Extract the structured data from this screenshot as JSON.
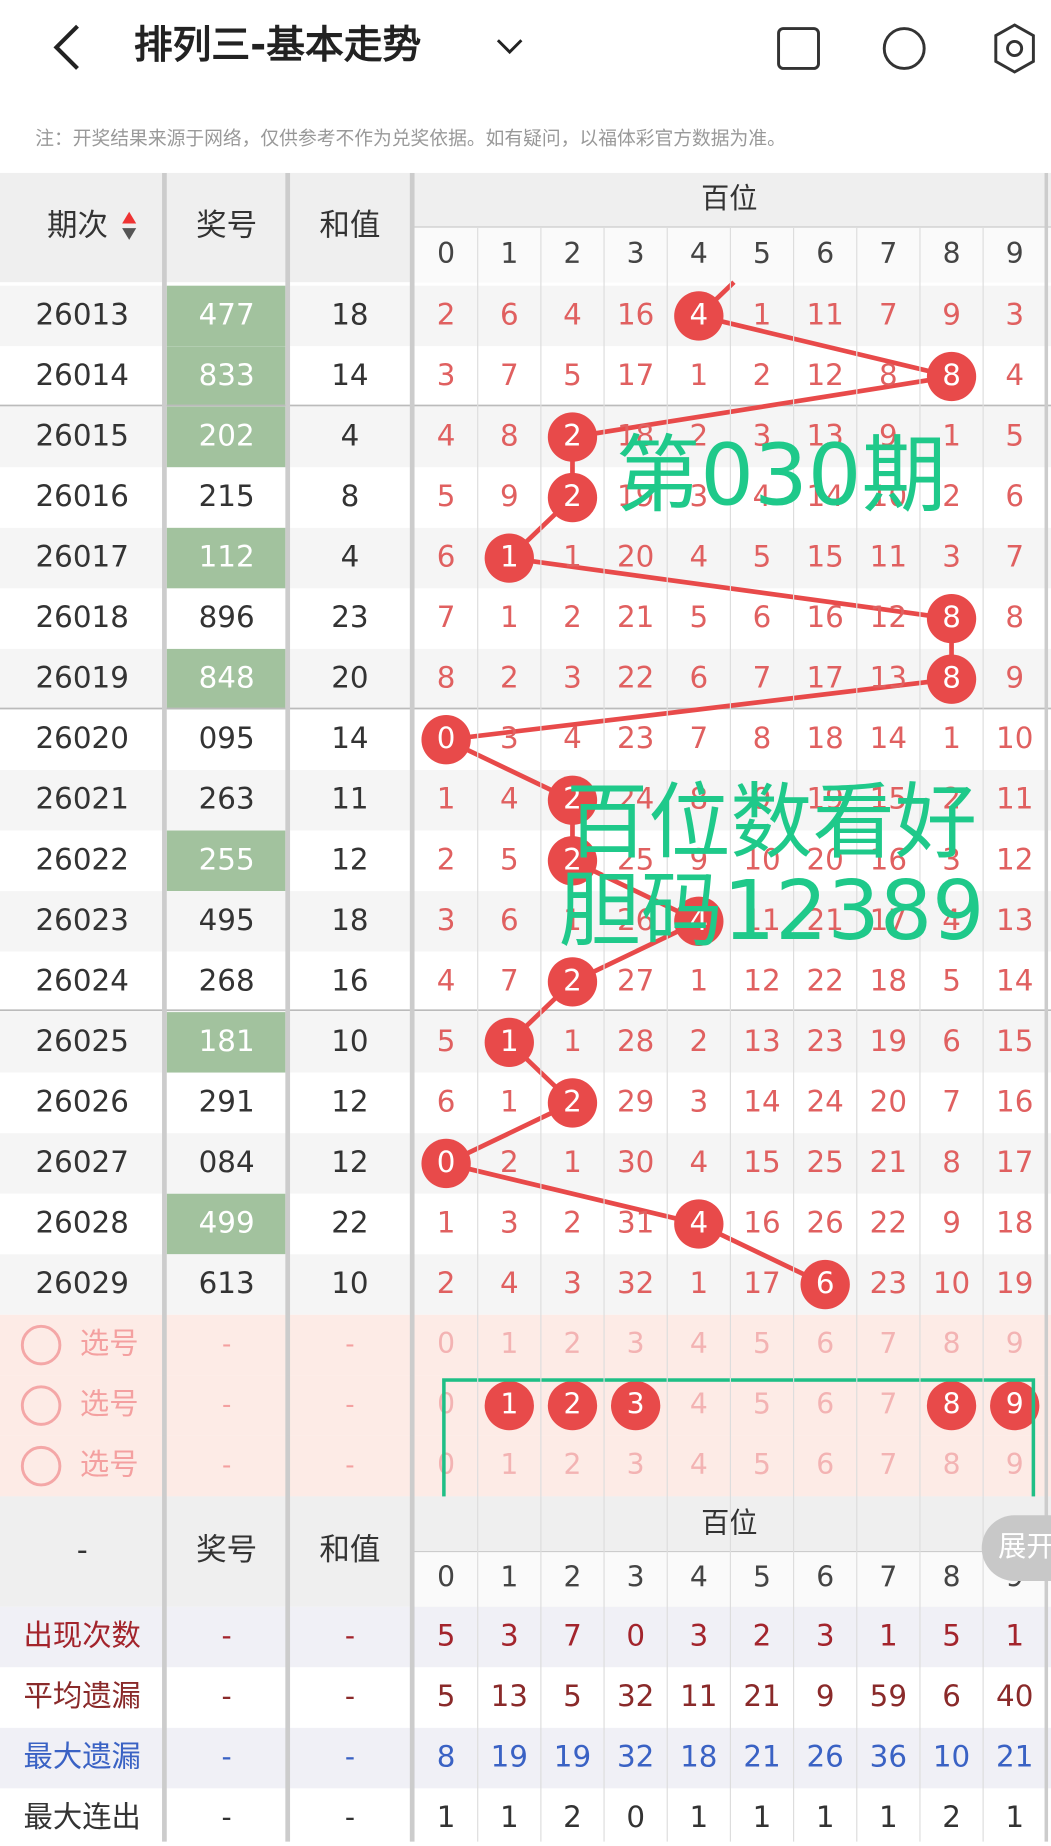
{
  "header": {
    "title": "排列三-基本走势",
    "note": "注：开奖结果来源于网络，仅供参考不作为兑奖依据。如有疑问，以福体彩官方数据为准。"
  },
  "table": {
    "col_issue": "期次",
    "col_number": "奖号",
    "col_sum": "和值",
    "group": "百位",
    "digits": [
      0,
      1,
      2,
      3,
      4,
      5,
      6,
      7,
      8,
      9
    ],
    "rows": [
      {
        "issue": "26013",
        "number": "477",
        "sum": 18,
        "green": true,
        "cells": [
          2,
          6,
          4,
          16,
          4,
          1,
          11,
          7,
          9,
          3
        ],
        "hit": 4
      },
      {
        "issue": "26014",
        "number": "833",
        "sum": 14,
        "green": true,
        "cells": [
          3,
          7,
          5,
          17,
          1,
          2,
          12,
          8,
          8,
          4
        ],
        "hit": 8
      },
      {
        "issue": "26015",
        "number": "202",
        "sum": 4,
        "green": true,
        "cells": [
          4,
          8,
          2,
          18,
          2,
          3,
          13,
          9,
          1,
          5
        ],
        "hit": 2
      },
      {
        "issue": "26016",
        "number": "215",
        "sum": 8,
        "green": false,
        "cells": [
          5,
          9,
          2,
          19,
          3,
          4,
          14,
          10,
          2,
          6
        ],
        "hit": 2
      },
      {
        "issue": "26017",
        "number": "112",
        "sum": 4,
        "green": true,
        "cells": [
          6,
          1,
          1,
          20,
          4,
          5,
          15,
          11,
          3,
          7
        ],
        "hit": 1
      },
      {
        "issue": "26018",
        "number": "896",
        "sum": 23,
        "green": false,
        "cells": [
          7,
          1,
          2,
          21,
          5,
          6,
          16,
          12,
          8,
          8
        ],
        "hit": 8
      },
      {
        "issue": "26019",
        "number": "848",
        "sum": 20,
        "green": true,
        "cells": [
          8,
          2,
          3,
          22,
          6,
          7,
          17,
          13,
          8,
          9
        ],
        "hit": 8
      },
      {
        "issue": "26020",
        "number": "095",
        "sum": 14,
        "green": false,
        "cells": [
          0,
          3,
          4,
          23,
          7,
          8,
          18,
          14,
          1,
          10
        ],
        "hit": 0
      },
      {
        "issue": "26021",
        "number": "263",
        "sum": 11,
        "green": false,
        "cells": [
          1,
          4,
          2,
          24,
          8,
          9,
          19,
          15,
          2,
          11
        ],
        "hit": 2
      },
      {
        "issue": "26022",
        "number": "255",
        "sum": 12,
        "green": true,
        "cells": [
          2,
          5,
          2,
          25,
          9,
          10,
          20,
          16,
          3,
          12
        ],
        "hit": 2
      },
      {
        "issue": "26023",
        "number": "495",
        "sum": 18,
        "green": false,
        "cells": [
          3,
          6,
          1,
          26,
          4,
          11,
          21,
          17,
          4,
          13
        ],
        "hit": 4
      },
      {
        "issue": "26024",
        "number": "268",
        "sum": 16,
        "green": false,
        "cells": [
          4,
          7,
          2,
          27,
          1,
          12,
          22,
          18,
          5,
          14
        ],
        "hit": 2
      },
      {
        "issue": "26025",
        "number": "181",
        "sum": 10,
        "green": true,
        "cells": [
          5,
          1,
          1,
          28,
          2,
          13,
          23,
          19,
          6,
          15
        ],
        "hit": 1
      },
      {
        "issue": "26026",
        "number": "291",
        "sum": 12,
        "green": false,
        "cells": [
          6,
          1,
          2,
          29,
          3,
          14,
          24,
          20,
          7,
          16
        ],
        "hit": 2
      },
      {
        "issue": "26027",
        "number": "084",
        "sum": 12,
        "green": false,
        "cells": [
          0,
          2,
          1,
          30,
          4,
          15,
          25,
          21,
          8,
          17
        ],
        "hit": 0
      },
      {
        "issue": "26028",
        "number": "499",
        "sum": 22,
        "green": true,
        "cells": [
          1,
          3,
          2,
          31,
          4,
          16,
          26,
          22,
          9,
          18
        ],
        "hit": 4
      },
      {
        "issue": "26029",
        "number": "613",
        "sum": 10,
        "green": false,
        "cells": [
          2,
          4,
          3,
          32,
          1,
          17,
          6,
          23,
          10,
          19
        ],
        "hit": 6
      }
    ]
  },
  "picker": {
    "label": "选号",
    "dash": "-",
    "rows": [
      {
        "selected": []
      },
      {
        "selected": [
          1,
          2,
          3,
          8,
          9
        ]
      },
      {
        "selected": []
      }
    ]
  },
  "annotations": [
    "第030期",
    "百位数看好",
    "胆码12389"
  ],
  "expand": "展开",
  "stats": {
    "col_first": "-",
    "col_number": "奖号",
    "col_sum": "和值",
    "group": "百位",
    "dash": "-",
    "rows": [
      {
        "label": "出现次数",
        "color": "#a3242c",
        "values": [
          5,
          3,
          7,
          0,
          3,
          2,
          3,
          1,
          5,
          1
        ]
      },
      {
        "label": "平均遗漏",
        "color": "#8a2a2a",
        "values": [
          5,
          13,
          5,
          32,
          11,
          21,
          9,
          59,
          6,
          40
        ]
      },
      {
        "label": "最大遗漏",
        "color": "#3a62c4",
        "values": [
          8,
          19,
          19,
          32,
          18,
          21,
          26,
          36,
          10,
          21
        ]
      },
      {
        "label": "最大连出",
        "color": "#333333",
        "values": [
          1,
          1,
          2,
          0,
          1,
          1,
          1,
          1,
          2,
          1
        ]
      }
    ]
  }
}
